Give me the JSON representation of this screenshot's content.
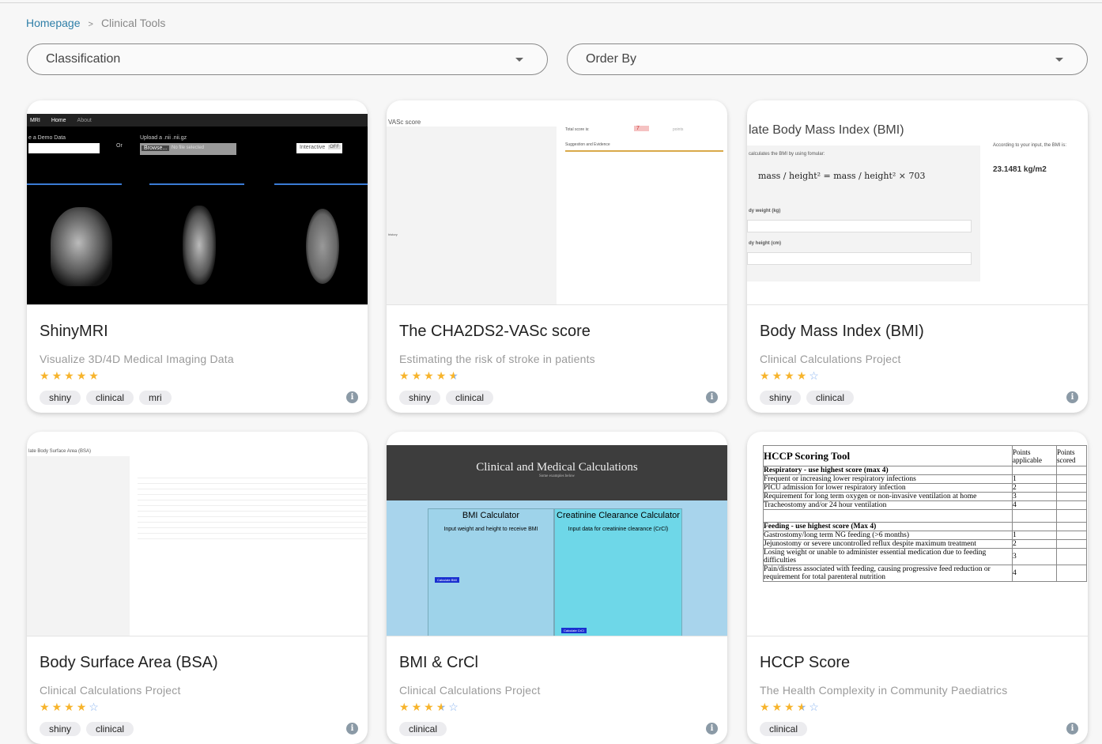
{
  "breadcrumb": {
    "home": "Homepage",
    "separator": ">",
    "current": "Clinical Tools"
  },
  "filters": {
    "classification": "Classification",
    "order_by": "Order By"
  },
  "colors": {
    "star": "#f7b42c",
    "star_empty": "#8ab4f0",
    "link": "#2f7fa8"
  },
  "cards": [
    {
      "title": "ShinyMRI",
      "subtitle": "Visualize 3D/4D Medical Imaging Data",
      "rating": 5,
      "tags": [
        "shiny",
        "clinical",
        "mri"
      ],
      "thumb": {
        "app": "MRI",
        "nav": [
          "Home",
          "About"
        ],
        "label1": "e a Demo Data",
        "label2": "Upload a .nii .nii.gz",
        "or": "Or",
        "button": "Browse...",
        "file": "No file selected",
        "toggle": "Interactive",
        "toggle_state": "OFF"
      }
    },
    {
      "title": "The CHA2DS2-VASc score",
      "subtitle": "Estimating the risk of stroke in patients",
      "rating": 4.5,
      "tags": [
        "shiny",
        "clinical"
      ],
      "thumb": {
        "heading": "VASc score",
        "total": "Total score is:",
        "score": "7",
        "unit": "points",
        "evidence": "Suggestion and Evidence",
        "history": "history"
      }
    },
    {
      "title": "Body Mass Index (BMI)",
      "subtitle": "Clinical Calculations Project",
      "rating": 4,
      "tags": [
        "shiny",
        "clinical"
      ],
      "thumb": {
        "heading": "late Body Mass Index (BMI)",
        "desc": "calculates the BMI by using fomular:",
        "result_label": "According to your input, the BMI is:",
        "result": "23.1481 kg/m2",
        "weight": "dy weight (kg)",
        "height": "dy height (cm)"
      }
    },
    {
      "title": "Body Surface Area (BSA)",
      "subtitle": "Clinical Calculations Project",
      "rating": 4,
      "tags": [
        "shiny",
        "clinical"
      ],
      "thumb": {
        "heading": "late Body Surface Area (BSA)"
      }
    },
    {
      "title": "BMI & CrCl",
      "subtitle": "Clinical Calculations Project",
      "rating": 3.5,
      "tags": [
        "clinical"
      ],
      "thumb": {
        "heading": "Clinical and Medical Calculations",
        "subheading": "Some examples below",
        "left_title": "BMI Calculator",
        "left_desc": "Input weight and height to receive BMI",
        "left_btn": "Calculate BMI",
        "right_title": "Creatinine Clearance Calculator",
        "right_desc": "Input data for creatinine clearance (CrCl)",
        "right_btn": "Calculate CrCl"
      }
    },
    {
      "title": "HCCP Score",
      "subtitle": "The Health Complexity in Community Paediatrics",
      "rating": 3.5,
      "tags": [
        "clinical"
      ],
      "thumb": {
        "heading": "HCCP Scoring Tool",
        "col1": "Points applicable",
        "col2": "Points scored",
        "rows": [
          [
            "Respiratory - use highest score (max 4)",
            ""
          ],
          [
            "Frequent or increasing lower respiratory infections",
            "1"
          ],
          [
            "PICU admission for lower respiratory infection",
            "2"
          ],
          [
            "Requirement for long term oxygen or non-invasive ventilation at home",
            "3"
          ],
          [
            "Tracheostomy and/or 24 hour ventilation",
            "4"
          ],
          [
            "",
            ""
          ],
          [
            "Feeding - use highest score (Max 4)",
            ""
          ],
          [
            "Gastrostomy/long term NG feeding (>6 months)",
            "1"
          ],
          [
            "Jejunostomy or severe uncontrolled reflux despite maximum treatment",
            "2"
          ],
          [
            "Losing weight or unable to administer essential medication due to feeding difficulties",
            "3"
          ],
          [
            "Pain/distress associated with feeding, causing progressive feed reduction or requirement for total parenteral nutrition",
            "4"
          ]
        ]
      }
    }
  ]
}
